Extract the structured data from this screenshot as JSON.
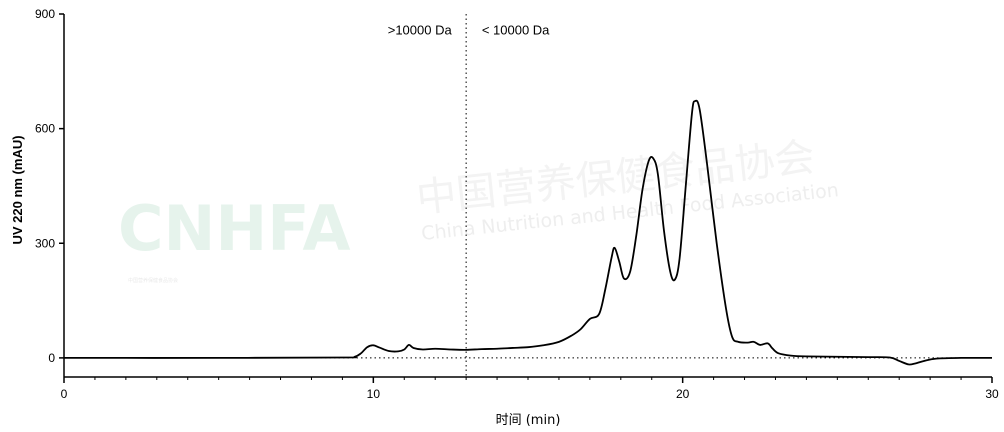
{
  "chart_data": {
    "type": "line",
    "xlabel": "时间 (min)",
    "ylabel": "UV 220 nm (mAU)",
    "xlim": [
      0,
      30
    ],
    "ylim": [
      -50,
      900
    ],
    "x_ticks": [
      0,
      10,
      20,
      30
    ],
    "y_ticks": [
      0,
      300,
      600,
      900
    ],
    "x_minor_step": 1,
    "grid": false,
    "legend": "none",
    "baseline_dotted_y": 0,
    "divider_x": 13,
    "annotations": [
      {
        "text": ">10000 Da",
        "x": 11.5,
        "y": 860
      },
      {
        "text": "< 10000 Da",
        "x": 14.6,
        "y": 860
      }
    ],
    "series": [
      {
        "color": "#000000",
        "points": [
          [
            0,
            0
          ],
          [
            5,
            0
          ],
          [
            9,
            1
          ],
          [
            9.4,
            3
          ],
          [
            9.6,
            12
          ],
          [
            9.8,
            28
          ],
          [
            10.0,
            33
          ],
          [
            10.2,
            27
          ],
          [
            10.5,
            18
          ],
          [
            10.8,
            17
          ],
          [
            11.0,
            22
          ],
          [
            11.15,
            34
          ],
          [
            11.3,
            26
          ],
          [
            11.6,
            22
          ],
          [
            12.0,
            24
          ],
          [
            12.5,
            22
          ],
          [
            13.0,
            21
          ],
          [
            13.5,
            23
          ],
          [
            14.0,
            24
          ],
          [
            14.5,
            26
          ],
          [
            15.0,
            28
          ],
          [
            15.5,
            33
          ],
          [
            16.0,
            42
          ],
          [
            16.4,
            58
          ],
          [
            16.7,
            75
          ],
          [
            17.0,
            102
          ],
          [
            17.3,
            115
          ],
          [
            17.5,
            180
          ],
          [
            17.7,
            262
          ],
          [
            17.8,
            288
          ],
          [
            17.95,
            252
          ],
          [
            18.1,
            208
          ],
          [
            18.3,
            225
          ],
          [
            18.5,
            320
          ],
          [
            18.7,
            440
          ],
          [
            18.9,
            515
          ],
          [
            19.05,
            522
          ],
          [
            19.2,
            480
          ],
          [
            19.4,
            330
          ],
          [
            19.6,
            225
          ],
          [
            19.75,
            205
          ],
          [
            19.9,
            260
          ],
          [
            20.1,
            450
          ],
          [
            20.3,
            640
          ],
          [
            20.4,
            672
          ],
          [
            20.55,
            650
          ],
          [
            20.8,
            500
          ],
          [
            21.1,
            300
          ],
          [
            21.4,
            130
          ],
          [
            21.6,
            55
          ],
          [
            21.8,
            42
          ],
          [
            22.1,
            40
          ],
          [
            22.3,
            42
          ],
          [
            22.5,
            34
          ],
          [
            22.75,
            38
          ],
          [
            22.9,
            25
          ],
          [
            23.1,
            12
          ],
          [
            23.5,
            6
          ],
          [
            24,
            4
          ],
          [
            25,
            3
          ],
          [
            26,
            2
          ],
          [
            26.7,
            1
          ],
          [
            27.0,
            -8
          ],
          [
            27.3,
            -17
          ],
          [
            27.5,
            -15
          ],
          [
            27.8,
            -8
          ],
          [
            28.2,
            -2
          ],
          [
            29,
            0
          ],
          [
            30,
            0
          ]
        ]
      }
    ]
  },
  "watermark": {
    "logo_text": "CNHFA",
    "logo_small": "中国营养保健食品协会",
    "cn_text": "中国营养保健食品协会",
    "en_text": "China Nutrition and Health Food Association"
  }
}
